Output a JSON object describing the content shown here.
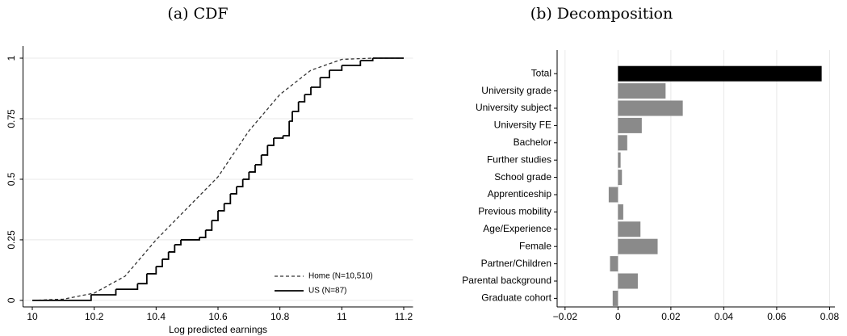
{
  "chart_data": [
    {
      "type": "line",
      "title": "(a) CDF",
      "x_label": "Log predicted earnings",
      "series": [
        {
          "name": "Home (N=10,510)",
          "color": "#333333",
          "dash": true,
          "drawstyle": "default",
          "x": [
            10.0,
            10.1,
            10.2,
            10.3,
            10.4,
            10.5,
            10.6,
            10.7,
            10.8,
            10.9,
            11.0,
            11.1,
            11.2
          ],
          "values": [
            0,
            0.005,
            0.03,
            0.1,
            0.25,
            0.38,
            0.51,
            0.7,
            0.85,
            0.95,
            0.995,
            1,
            1
          ]
        },
        {
          "name": "US (N=87)",
          "color": "#000000",
          "dash": false,
          "drawstyle": "steps",
          "x": [
            10.0,
            10.19,
            10.27,
            10.34,
            10.37,
            10.4,
            10.42,
            10.44,
            10.46,
            10.48,
            10.54,
            10.56,
            10.58,
            10.6,
            10.62,
            10.64,
            10.66,
            10.68,
            10.7,
            10.72,
            10.74,
            10.76,
            10.78,
            10.81,
            10.83,
            10.84,
            10.86,
            10.88,
            10.9,
            10.93,
            10.96,
            11.0,
            11.06,
            11.1,
            11.2
          ],
          "values": [
            0,
            0.023,
            0.046,
            0.069,
            0.11,
            0.14,
            0.17,
            0.2,
            0.23,
            0.25,
            0.26,
            0.29,
            0.33,
            0.37,
            0.4,
            0.44,
            0.47,
            0.5,
            0.53,
            0.56,
            0.6,
            0.64,
            0.67,
            0.68,
            0.74,
            0.78,
            0.82,
            0.85,
            0.88,
            0.92,
            0.95,
            0.97,
            0.99,
            1,
            1
          ]
        }
      ],
      "xlim": [
        9.97,
        11.23
      ],
      "xticks": [
        10,
        10.2,
        10.4,
        10.6,
        10.8,
        11,
        11.2
      ],
      "ylim": [
        -0.027,
        1.05
      ],
      "yticks": [
        0,
        0.25,
        0.5,
        0.75,
        1
      ],
      "grid": true,
      "legend": "lower right"
    },
    {
      "type": "barh",
      "title": "(b) Decomposition",
      "categories": [
        "Total",
        "University grade",
        "University subject",
        "University FE",
        "Bachelor",
        "Further studies",
        "School grade",
        "Apprenticeship",
        "Previous mobility",
        "Age/Experience",
        "Female",
        "Partner/Children",
        "Parental background",
        "Graduate cohort"
      ],
      "values": [
        0.077,
        0.018,
        0.0245,
        0.009,
        0.0035,
        0.001,
        0.0015,
        -0.0035,
        0.002,
        0.0085,
        0.015,
        -0.003,
        0.0075,
        -0.002
      ],
      "colors": [
        "#000000",
        "#8a8a8a",
        "#8a8a8a",
        "#8a8a8a",
        "#8a8a8a",
        "#8a8a8a",
        "#8a8a8a",
        "#8a8a8a",
        "#8a8a8a",
        "#8a8a8a",
        "#8a8a8a",
        "#8a8a8a",
        "#8a8a8a",
        "#8a8a8a"
      ],
      "xlim": [
        -0.023,
        0.082
      ],
      "xticks": [
        {
          "value": -0.02,
          "label": "−0.02"
        },
        0,
        0.02,
        0.04,
        0.06,
        0.08
      ],
      "grid": true
    }
  ]
}
